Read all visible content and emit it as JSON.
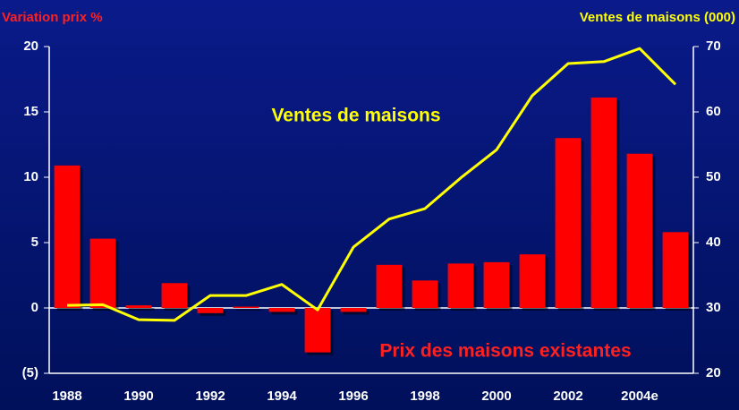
{
  "chart_data": {
    "type": "bar",
    "y_label": "Variation prix %",
    "y2_label": "Ventes de maisons (000)",
    "annotations": [
      "Ventes de maisons",
      "Prix des maisons existantes"
    ],
    "categories": [
      "1988",
      null,
      "1990",
      null,
      "1992",
      null,
      "1994",
      null,
      "1996",
      null,
      "1998",
      null,
      "2000",
      null,
      "2002",
      null,
      "2004e",
      null
    ],
    "series": [
      {
        "name": "Prix des maisons existantes",
        "type": "bar",
        "color": "#ff0000",
        "axis": "y",
        "values": [
          10.9,
          5.3,
          0.2,
          1.9,
          -0.4,
          0.1,
          -0.3,
          -3.4,
          -0.3,
          3.3,
          2.1,
          3.4,
          3.5,
          4.1,
          13.0,
          16.1,
          11.8,
          5.8
        ]
      },
      {
        "name": "Ventes de maisons",
        "type": "line",
        "color": "#ffff00",
        "axis": "y2",
        "values": [
          30.4,
          30.5,
          28.2,
          28.1,
          31.9,
          31.9,
          33.6,
          29.7,
          39.3,
          43.6,
          45.2,
          49.9,
          54.2,
          62.5,
          67.4,
          67.7,
          69.7,
          64.2
        ]
      }
    ],
    "ylim": [
      -5,
      20
    ],
    "yticks": [
      {
        "value": -5,
        "label": "(5)"
      },
      0,
      5,
      10,
      15,
      20
    ],
    "y2lim": [
      20,
      70
    ],
    "y2ticks": [
      20,
      30,
      40,
      50,
      60,
      70
    ],
    "grid": false
  }
}
